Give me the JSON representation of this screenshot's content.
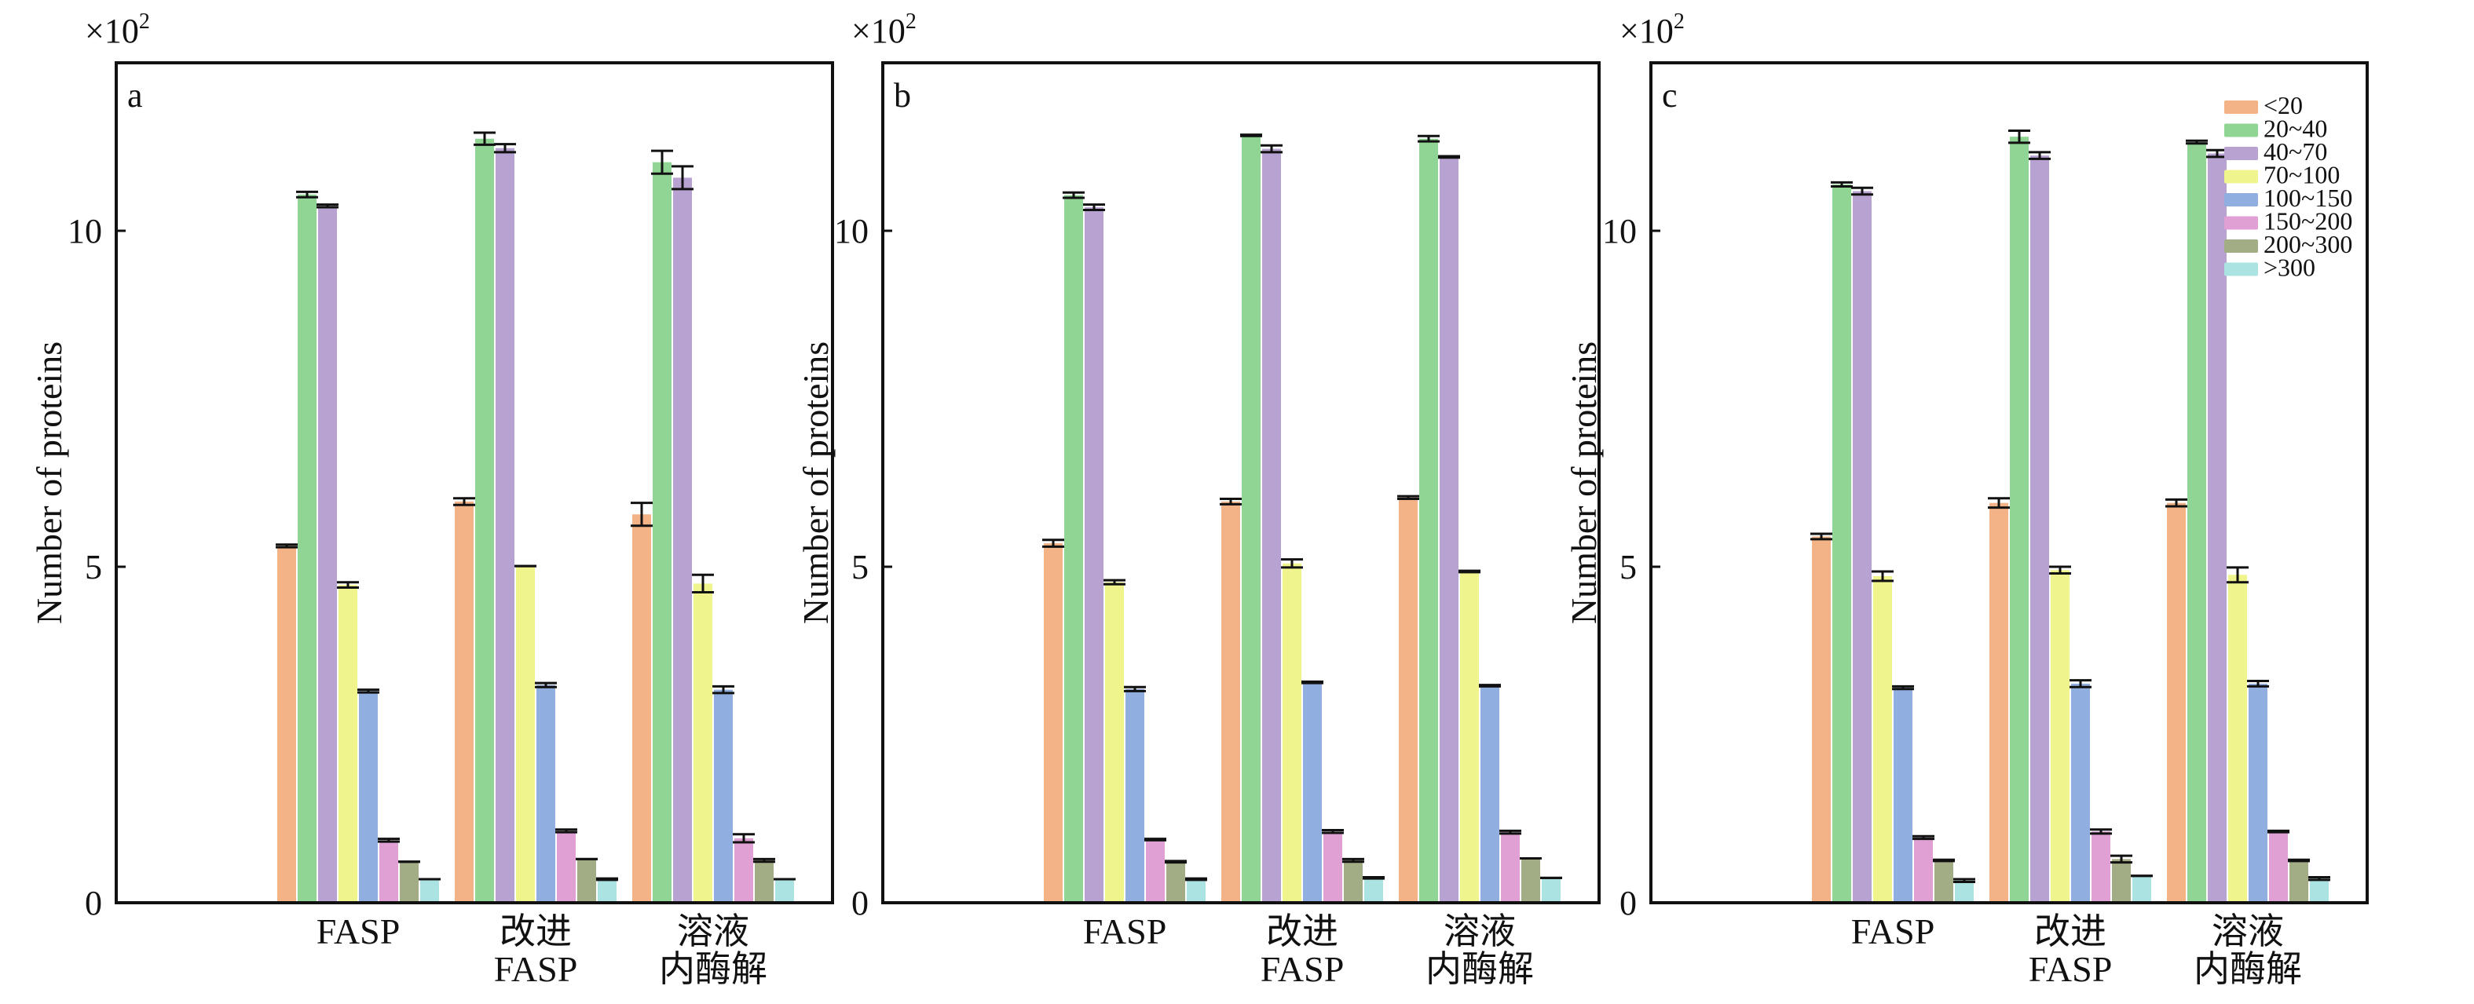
{
  "chart_data": [
    {
      "type": "bar",
      "panel_label": "a",
      "multiplier": "×10",
      "multiplier_exp": "2",
      "ylabel": "Number of proteins",
      "ylim": [
        0,
        12.5
      ],
      "yticks": [
        "0",
        "5",
        "10"
      ],
      "categories": [
        [
          "FASP"
        ],
        [
          "改进",
          "FASP"
        ],
        [
          "溶液",
          "内酶解"
        ]
      ],
      "series": [
        {
          "name": "<20",
          "color": "#f4b386",
          "values": [
            5.31,
            5.97,
            5.78
          ],
          "errors": [
            0.02,
            0.05,
            0.17
          ]
        },
        {
          "name": "20~40",
          "color": "#90d593",
          "values": [
            10.54,
            11.37,
            11.02
          ],
          "errors": [
            0.04,
            0.09,
            0.17
          ]
        },
        {
          "name": "40~70",
          "color": "#b8a2d2",
          "values": [
            10.37,
            11.23,
            10.79
          ],
          "errors": [
            0.02,
            0.06,
            0.17
          ]
        },
        {
          "name": "70~100",
          "color": "#eff48c",
          "values": [
            4.73,
            5.01,
            4.75
          ],
          "errors": [
            0.04,
            0.0,
            0.13
          ]
        },
        {
          "name": "100~150",
          "color": "#91aee0",
          "values": [
            3.15,
            3.24,
            3.17
          ],
          "errors": [
            0.02,
            0.03,
            0.05
          ]
        },
        {
          "name": "150~200",
          "color": "#e0a0d4",
          "values": [
            0.93,
            1.07,
            0.96
          ],
          "errors": [
            0.02,
            0.02,
            0.06
          ]
        },
        {
          "name": "200~300",
          "color": "#a2ad86",
          "values": [
            0.61,
            0.65,
            0.63
          ],
          "errors": [
            0.0,
            0.0,
            0.02
          ]
        },
        {
          "name": ">300",
          "color": "#aae3e2",
          "values": [
            0.35,
            0.35,
            0.35
          ],
          "errors": [
            0.0,
            0.01,
            0.0
          ]
        }
      ]
    },
    {
      "type": "bar",
      "panel_label": "b",
      "multiplier": "×10",
      "multiplier_exp": "2",
      "ylabel": "Number of proteins",
      "ylim": [
        0,
        12.5
      ],
      "yticks": [
        "0",
        "5",
        "10"
      ],
      "categories": [
        [
          "FASP"
        ],
        [
          "改进",
          "FASP"
        ],
        [
          "溶液",
          "内酶解"
        ]
      ],
      "series": [
        {
          "name": "<20",
          "color": "#f4b386",
          "values": [
            5.35,
            5.97,
            6.03
          ],
          "errors": [
            0.05,
            0.04,
            0.02
          ]
        },
        {
          "name": "20~40",
          "color": "#90d593",
          "values": [
            10.53,
            11.42,
            11.37
          ],
          "errors": [
            0.04,
            0.01,
            0.04
          ]
        },
        {
          "name": "40~70",
          "color": "#b8a2d2",
          "values": [
            10.35,
            11.22,
            11.1
          ],
          "errors": [
            0.04,
            0.05,
            0.01
          ]
        },
        {
          "name": "70~100",
          "color": "#eff48c",
          "values": [
            4.77,
            5.05,
            4.93
          ],
          "errors": [
            0.03,
            0.06,
            0.01
          ]
        },
        {
          "name": "100~150",
          "color": "#91aee0",
          "values": [
            3.18,
            3.28,
            3.23
          ],
          "errors": [
            0.03,
            0.01,
            0.01
          ]
        },
        {
          "name": "150~200",
          "color": "#e0a0d4",
          "values": [
            0.94,
            1.06,
            1.05
          ],
          "errors": [
            0.01,
            0.02,
            0.02
          ]
        },
        {
          "name": "200~300",
          "color": "#a2ad86",
          "values": [
            0.61,
            0.63,
            0.66
          ],
          "errors": [
            0.01,
            0.02,
            0.0
          ]
        },
        {
          "name": ">300",
          "color": "#aae3e2",
          "values": [
            0.35,
            0.37,
            0.37
          ],
          "errors": [
            0.01,
            0.01,
            0.0
          ]
        }
      ]
    },
    {
      "type": "bar",
      "panel_label": "c",
      "multiplier": "×10",
      "multiplier_exp": "2",
      "ylabel": "Number of proteins",
      "ylim": [
        0,
        12.5
      ],
      "yticks": [
        "0",
        "5",
        "10"
      ],
      "categories": [
        [
          "FASP"
        ],
        [
          "改进",
          "FASP"
        ],
        [
          "溶液",
          "内酶解"
        ]
      ],
      "legend_position": "top-right",
      "series": [
        {
          "name": "<20",
          "color": "#f4b386",
          "values": [
            5.45,
            5.95,
            5.95
          ],
          "errors": [
            0.04,
            0.07,
            0.05
          ]
        },
        {
          "name": "20~40",
          "color": "#90d593",
          "values": [
            10.69,
            11.4,
            11.32
          ],
          "errors": [
            0.03,
            0.09,
            0.02
          ]
        },
        {
          "name": "40~70",
          "color": "#b8a2d2",
          "values": [
            10.59,
            11.12,
            11.15
          ],
          "errors": [
            0.05,
            0.05,
            0.05
          ]
        },
        {
          "name": "70~100",
          "color": "#eff48c",
          "values": [
            4.86,
            4.95,
            4.88
          ],
          "errors": [
            0.07,
            0.05,
            0.11
          ]
        },
        {
          "name": "100~150",
          "color": "#91aee0",
          "values": [
            3.2,
            3.26,
            3.26
          ],
          "errors": [
            0.02,
            0.05,
            0.04
          ]
        },
        {
          "name": "150~200",
          "color": "#e0a0d4",
          "values": [
            0.97,
            1.06,
            1.06
          ],
          "errors": [
            0.02,
            0.03,
            0.01
          ]
        },
        {
          "name": "200~300",
          "color": "#a2ad86",
          "values": [
            0.63,
            0.65,
            0.63
          ],
          "errors": [
            0.01,
            0.05,
            0.01
          ]
        },
        {
          "name": ">300",
          "color": "#aae3e2",
          "values": [
            0.33,
            0.4,
            0.36
          ],
          "errors": [
            0.02,
            0.0,
            0.02
          ]
        }
      ]
    }
  ]
}
